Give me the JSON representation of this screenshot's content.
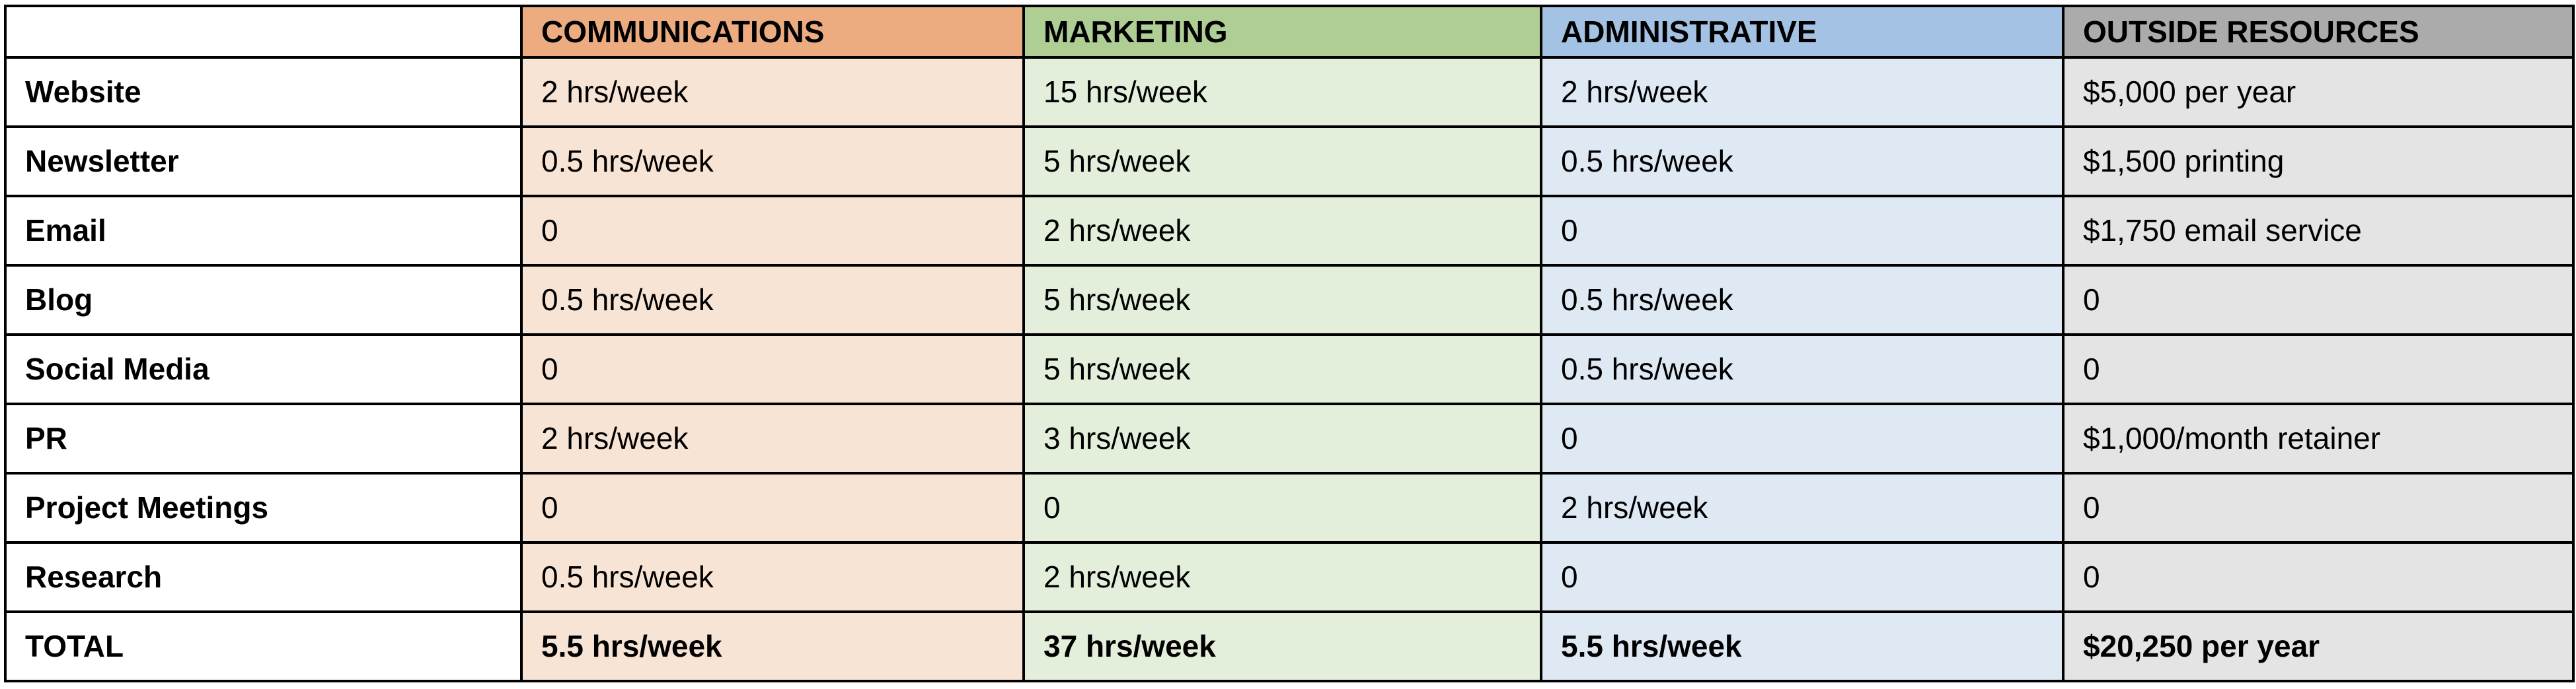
{
  "table": {
    "corner_label": "",
    "columns": [
      "COMMUNICATIONS",
      "MARKETING",
      "ADMINISTRATIVE",
      "OUTSIDE RESOURCES"
    ],
    "rows": [
      {
        "label": "Website",
        "values": [
          "2 hrs/week",
          "15 hrs/week",
          "2 hrs/week",
          "$5,000 per year"
        ]
      },
      {
        "label": "Newsletter",
        "values": [
          "0.5 hrs/week",
          "5 hrs/week",
          "0.5 hrs/week",
          "$1,500 printing"
        ]
      },
      {
        "label": "Email",
        "values": [
          "0",
          "2 hrs/week",
          "0",
          "$1,750 email service"
        ]
      },
      {
        "label": "Blog",
        "values": [
          "0.5 hrs/week",
          "5 hrs/week",
          "0.5 hrs/week",
          "0"
        ]
      },
      {
        "label": "Social Media",
        "values": [
          "0",
          "5 hrs/week",
          "0.5 hrs/week",
          "0"
        ]
      },
      {
        "label": "PR",
        "values": [
          "2 hrs/week",
          "3 hrs/week",
          "0",
          "$1,000/month retainer"
        ]
      },
      {
        "label": "Project Meetings",
        "values": [
          "0",
          "0",
          "2 hrs/week",
          "0"
        ]
      },
      {
        "label": "Research",
        "values": [
          "0.5 hrs/week",
          "2 hrs/week",
          "0",
          "0"
        ]
      },
      {
        "label": "TOTAL",
        "values": [
          "5.5 hrs/week",
          "37 hrs/week",
          "5.5 hrs/week",
          "$20,250 per year"
        ]
      }
    ],
    "colors": {
      "border": "#000000",
      "text": "#000000",
      "label_column_bg": "#FFFFFF",
      "communications_header": "#EDAC80",
      "communications_body": "#F8E4D4",
      "marketing_header": "#AFCE93",
      "marketing_body": "#E3EEDB",
      "administrative_header": "#A4C2E4",
      "administrative_body": "#DFE9F4",
      "outside_resources_header": "#ABABAB",
      "outside_resources_body": "#E5E4E4"
    }
  }
}
